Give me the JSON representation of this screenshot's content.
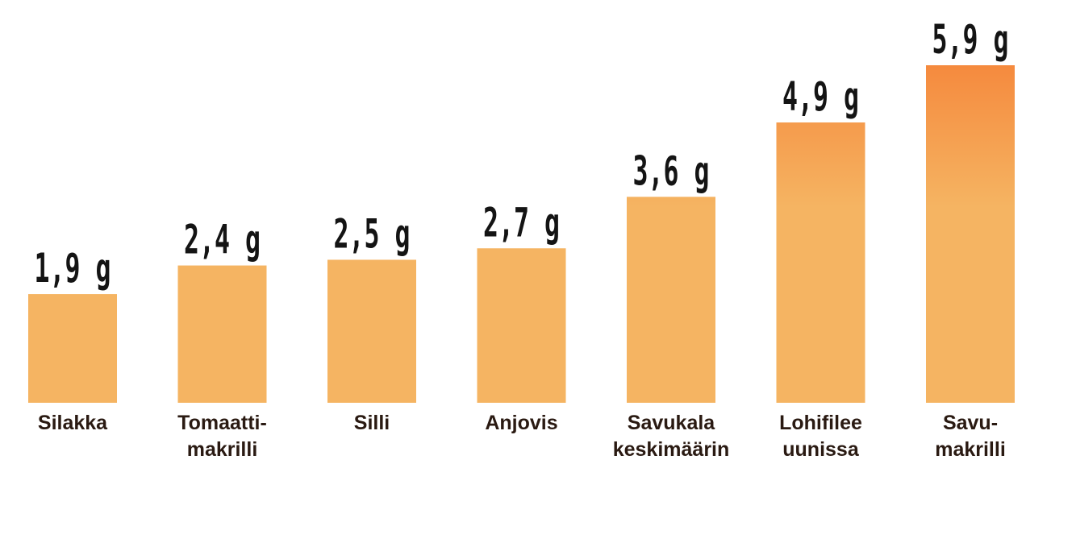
{
  "colors": {
    "bar_light": "#f5b462",
    "bar_dark": "#f58a3e",
    "value_text": "#141414",
    "category_text": "#2a1a12"
  },
  "chart_data": {
    "type": "bar",
    "title": "",
    "xlabel": "",
    "ylabel": "",
    "unit": "g",
    "categories": [
      [
        "Silakka"
      ],
      [
        "Tomaatti-",
        "makrilli"
      ],
      [
        "Silli"
      ],
      [
        "Anjovis"
      ],
      [
        "Savukala",
        "keskimäärin"
      ],
      [
        "Lohifilee",
        "uunissa"
      ],
      [
        "Savu-",
        "makrilli"
      ]
    ],
    "values": [
      1.9,
      2.4,
      2.5,
      2.7,
      3.6,
      4.9,
      5.9
    ],
    "value_labels": [
      "1,9 g",
      "2,4 g",
      "2,5 g",
      "2,7 g",
      "3,6 g",
      "4,9 g",
      "5,9 g"
    ],
    "ylim": [
      0,
      5.9
    ],
    "grid": false,
    "legend": "none"
  }
}
